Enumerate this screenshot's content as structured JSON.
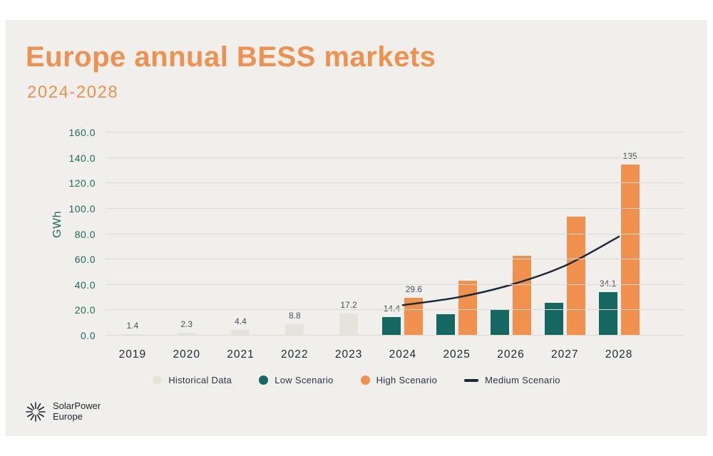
{
  "page": {
    "title": "Europe annual BESS markets",
    "subtitle": "2024-2028"
  },
  "chart_data": {
    "type": "bar",
    "title": "Europe annual BESS markets",
    "subtitle": "2024-2028",
    "xlabel": "",
    "ylabel": "GWh",
    "ylim": [
      0,
      160
    ],
    "ytick_step": 20,
    "yticks": [
      "0.0",
      "20.0",
      "40.0",
      "60.0",
      "80.0",
      "100.0",
      "120.0",
      "140.0",
      "160.0"
    ],
    "grid": true,
    "legend_position": "bottom",
    "categories": [
      "2019",
      "2020",
      "2021",
      "2022",
      "2023",
      "2024",
      "2025",
      "2026",
      "2027",
      "2028"
    ],
    "series": [
      {
        "name": "Historical Data",
        "kind": "bar",
        "color": "#e6e2dc",
        "values": [
          1.4,
          2.3,
          4.4,
          8.8,
          17.2,
          null,
          null,
          null,
          null,
          null
        ],
        "labels": [
          "1.4",
          "2.3",
          "4.4",
          "8.8",
          "17.2",
          null,
          null,
          null,
          null,
          null
        ]
      },
      {
        "name": "Low Scenario",
        "kind": "bar",
        "color": "#156862",
        "values": [
          null,
          null,
          null,
          null,
          null,
          14.4,
          17,
          21,
          26,
          34.1
        ],
        "labels": [
          null,
          null,
          null,
          null,
          null,
          "14.4",
          null,
          null,
          null,
          "34.1"
        ]
      },
      {
        "name": "High Scenario",
        "kind": "bar",
        "color": "#f2914e",
        "values": [
          null,
          null,
          null,
          null,
          null,
          29.6,
          43,
          63,
          94,
          135
        ],
        "labels": [
          null,
          null,
          null,
          null,
          null,
          "29.6",
          null,
          null,
          null,
          "135"
        ]
      },
      {
        "name": "Medium Scenario",
        "kind": "line",
        "type": "line",
        "color": "#1b2a3a",
        "values": [
          null,
          null,
          null,
          null,
          null,
          24,
          30,
          40,
          55,
          78
        ],
        "labels": [
          null,
          null,
          null,
          null,
          null,
          null,
          null,
          null,
          null,
          null
        ]
      }
    ],
    "legend": [
      {
        "label": "Historical Data",
        "marker": "circle",
        "color": "#e6e2dc"
      },
      {
        "label": "Low Scenario",
        "marker": "circle",
        "color": "#156862"
      },
      {
        "label": "High Scenario",
        "marker": "circle",
        "color": "#f2914e"
      },
      {
        "label": "Medium Scenario",
        "marker": "line",
        "color": "#1b2a3a"
      }
    ]
  },
  "footer": {
    "logo_icon": "sunburst-icon",
    "brand_line1": "SolarPower",
    "brand_line2": "Europe"
  }
}
